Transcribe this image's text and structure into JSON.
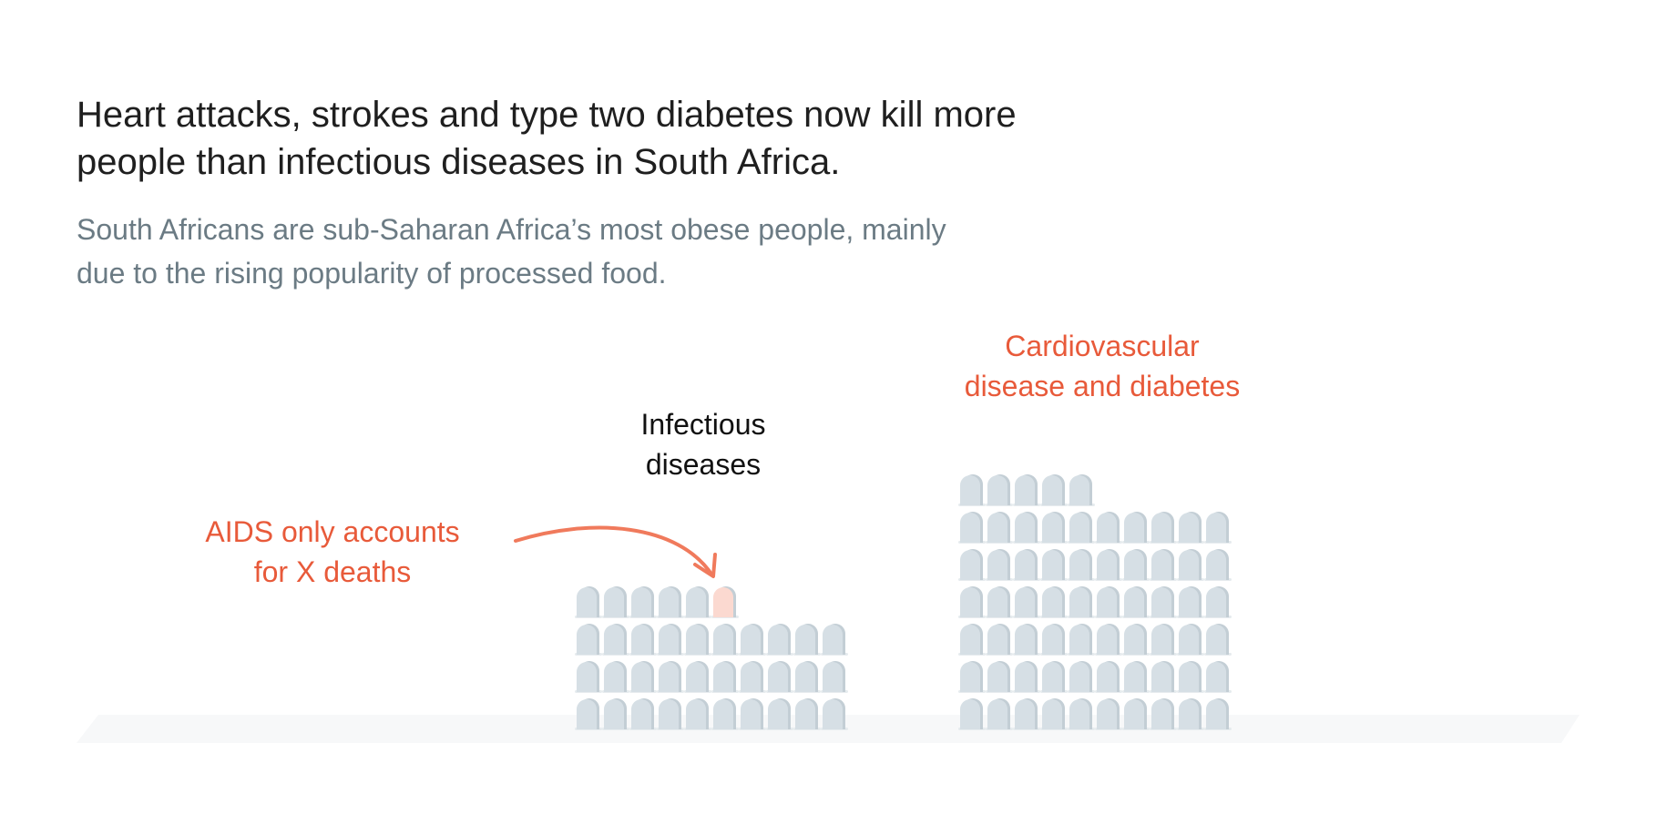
{
  "header": {
    "title": "Heart attacks, strokes and type two diabetes now kill more\npeople than infectious diseases in South Africa.",
    "subtitle": "South Africans are sub-Saharan Africa’s most obese people, mainly\ndue to the rising popularity of processed food."
  },
  "colors": {
    "tombstone": "#d6dfe5",
    "tombstone_shadow": "#c3ced5",
    "aids_tombstone": "#fbd9d0",
    "accent": "#e85a3a",
    "arrow": "#f07a5c",
    "ground": "#f7f8f9"
  },
  "chart_data": {
    "type": "pictogram",
    "unit": "tombstone",
    "series": [
      {
        "name": "Infectious\ndiseases",
        "count": 36,
        "highlighted_count": 1,
        "columns": 10
      },
      {
        "name": "Cardiovascular\ndisease and diabetes",
        "count": 65,
        "highlighted_count": 0,
        "columns": 10
      }
    ],
    "annotation": "AIDS only accounts\nfor X deaths"
  }
}
